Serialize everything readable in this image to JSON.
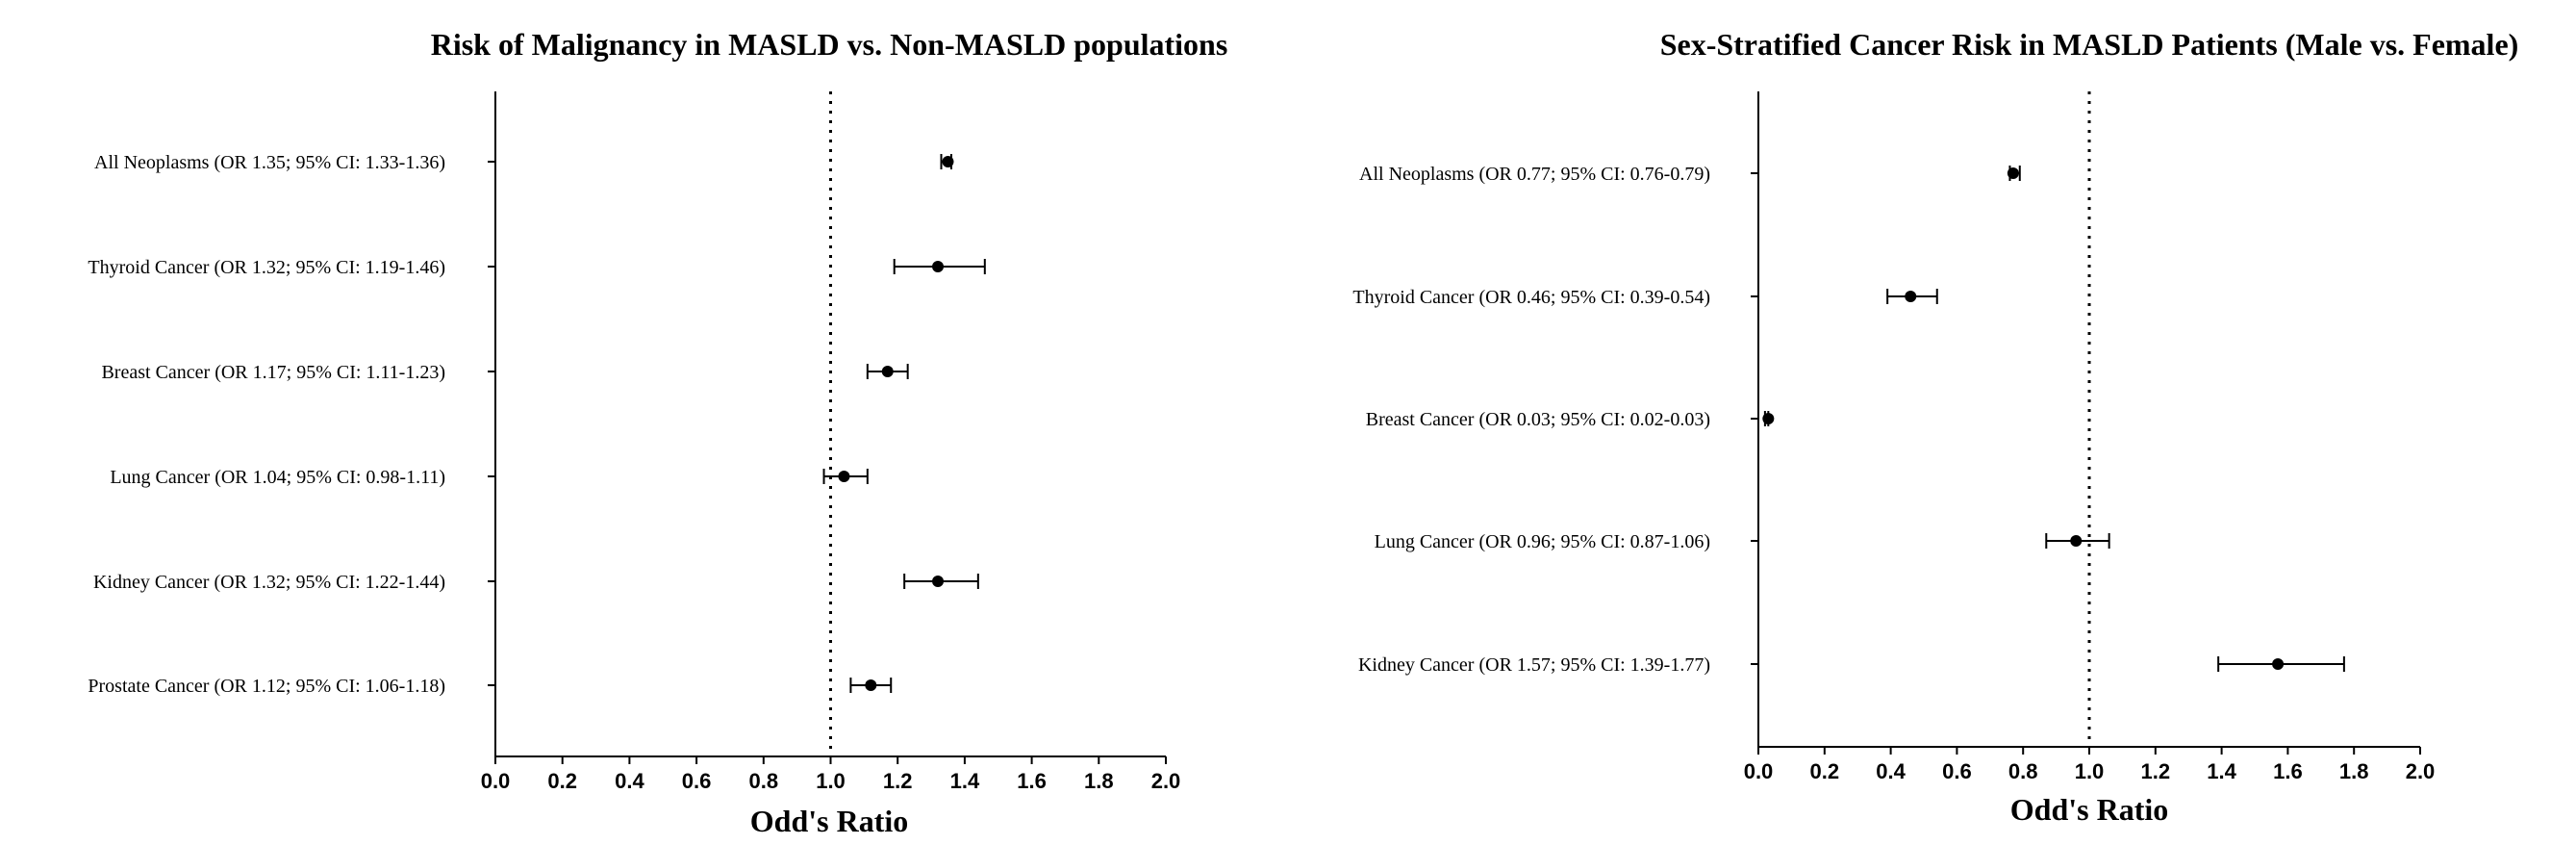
{
  "chart_data": [
    {
      "type": "forest",
      "title": "Risk of Malignancy in MASLD vs. Non-MASLD populations",
      "xlabel": "Odd's Ratio",
      "xlim": [
        0.0,
        2.0
      ],
      "xticks": [
        "0.0",
        "0.2",
        "0.4",
        "0.6",
        "0.8",
        "1.0",
        "1.2",
        "1.4",
        "1.6",
        "1.8",
        "2.0"
      ],
      "reference_line": 1.0,
      "rows": [
        {
          "label": "All Neoplasms (OR 1.35; 95% CI: 1.33-1.36)",
          "or": 1.35,
          "lo": 1.33,
          "hi": 1.36
        },
        {
          "label": "Thyroid Cancer (OR 1.32; 95% CI: 1.19-1.46)",
          "or": 1.32,
          "lo": 1.19,
          "hi": 1.46
        },
        {
          "label": "Breast Cancer (OR 1.17; 95% CI: 1.11-1.23)",
          "or": 1.17,
          "lo": 1.11,
          "hi": 1.23
        },
        {
          "label": "Lung Cancer (OR 1.04; 95% CI: 0.98-1.11)",
          "or": 1.04,
          "lo": 0.98,
          "hi": 1.11
        },
        {
          "label": "Kidney Cancer (OR 1.32; 95% CI: 1.22-1.44)",
          "or": 1.32,
          "lo": 1.22,
          "hi": 1.44
        },
        {
          "label": "Prostate Cancer (OR 1.12; 95% CI: 1.06-1.18)",
          "or": 1.12,
          "lo": 1.06,
          "hi": 1.18
        }
      ]
    },
    {
      "type": "forest",
      "title": "Sex-Stratified Cancer Risk in MASLD Patients (Male vs.  Female)",
      "xlabel": "Odd's Ratio",
      "xlim": [
        0.0,
        2.0
      ],
      "xticks": [
        "0.0",
        "0.2",
        "0.4",
        "0.6",
        "0.8",
        "1.0",
        "1.2",
        "1.4",
        "1.6",
        "1.8",
        "2.0"
      ],
      "reference_line": 1.0,
      "rows": [
        {
          "label": "All Neoplasms (OR 0.77; 95% CI: 0.76-0.79)",
          "or": 0.77,
          "lo": 0.76,
          "hi": 0.79
        },
        {
          "label": "Thyroid Cancer (OR 0.46; 95% CI: 0.39-0.54)",
          "or": 0.46,
          "lo": 0.39,
          "hi": 0.54
        },
        {
          "label": "Breast Cancer (OR 0.03; 95% CI: 0.02-0.03)",
          "or": 0.03,
          "lo": 0.02,
          "hi": 0.03
        },
        {
          "label": "Lung Cancer (OR 0.96; 95% CI: 0.87-1.06)",
          "or": 0.96,
          "lo": 0.87,
          "hi": 1.06
        },
        {
          "label": "Kidney Cancer (OR 1.57; 95% CI: 1.39-1.77)",
          "or": 1.57,
          "lo": 1.39,
          "hi": 1.77
        }
      ]
    }
  ]
}
